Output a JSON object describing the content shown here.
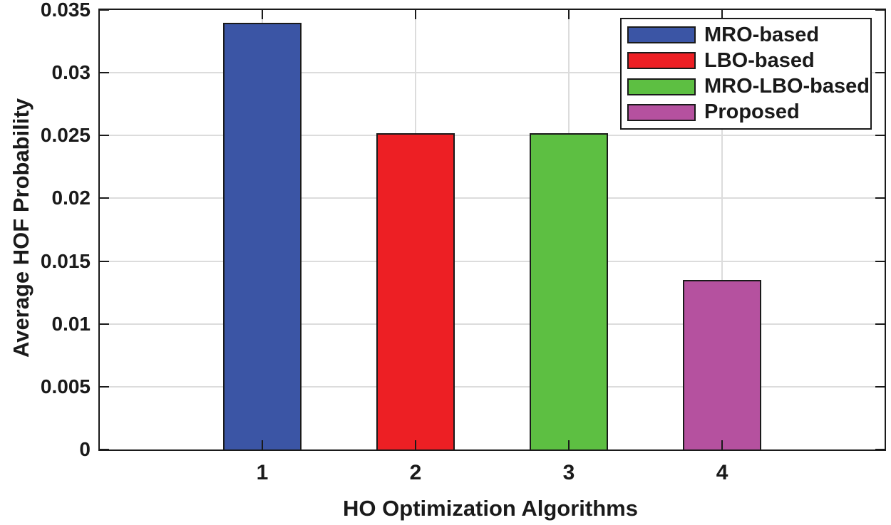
{
  "chart_data": {
    "type": "bar",
    "title": "",
    "xlabel": "HO Optimization Algorithms",
    "ylabel": "Average HOF Probability",
    "categories": [
      "1",
      "2",
      "3",
      "4"
    ],
    "bars": [
      {
        "category": "1",
        "name": "MRO-based",
        "value": 0.034,
        "color": "#3B55A5"
      },
      {
        "category": "2",
        "name": "LBO-based",
        "value": 0.0252,
        "color": "#ED1F24"
      },
      {
        "category": "3",
        "name": "MRO-LBO-based",
        "value": 0.0252,
        "color": "#5DBF42"
      },
      {
        "category": "4",
        "name": "Proposed",
        "value": 0.0135,
        "color": "#B5519F"
      }
    ],
    "legend": {
      "position": "top-right",
      "entries": [
        {
          "label": "MRO-based",
          "color": "#3B55A5"
        },
        {
          "label": "LBO-based",
          "color": "#ED1F24"
        },
        {
          "label": "MRO-LBO-based",
          "color": "#5DBF42"
        },
        {
          "label": "Proposed",
          "color": "#B5519F"
        }
      ]
    },
    "ylim": [
      0,
      0.035
    ],
    "xlim": [
      -0.06,
      5.06
    ],
    "yticks": [
      {
        "value": 0,
        "label": "0"
      },
      {
        "value": 0.005,
        "label": "0.005"
      },
      {
        "value": 0.01,
        "label": "0.01"
      },
      {
        "value": 0.015,
        "label": "0.015"
      },
      {
        "value": 0.02,
        "label": "0.02"
      },
      {
        "value": 0.025,
        "label": "0.025"
      },
      {
        "value": 0.03,
        "label": "0.03"
      },
      {
        "value": 0.035,
        "label": "0.035"
      }
    ],
    "xticks": [
      {
        "value": 1,
        "label": "1"
      },
      {
        "value": 2,
        "label": "2"
      },
      {
        "value": 3,
        "label": "3"
      },
      {
        "value": 4,
        "label": "4"
      }
    ],
    "bar_width_rel": 0.51,
    "grid": true,
    "colors": {
      "axis": "#1A1A1A",
      "grid": "#DCDCDC",
      "text": "#1A1A1A",
      "background": "#FFFFFF"
    }
  }
}
